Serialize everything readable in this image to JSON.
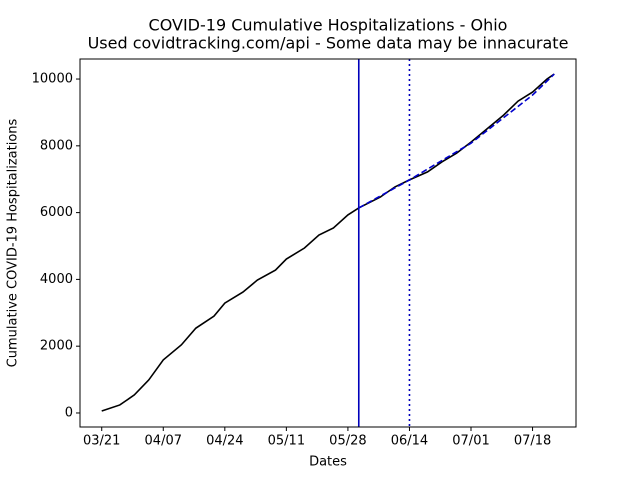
{
  "chart_data": {
    "type": "line",
    "title": "COVID-19 Cumulative Hospitalizations - Ohio",
    "subtitle": "Used covidtracking.com/api - Some data may be innacurate",
    "x_label": "Dates",
    "y_label": "Cumulative COVID-19 Hospitalizations",
    "xlim": [
      "03/15",
      "07/30"
    ],
    "xticks": [
      "03/21",
      "04/07",
      "04/24",
      "05/11",
      "05/28",
      "06/14",
      "07/01",
      "07/18"
    ],
    "ylim": [
      -420,
      10600
    ],
    "yticks": [
      0,
      2000,
      4000,
      6000,
      8000,
      10000
    ],
    "series": [
      {
        "color": "#000000",
        "style": "solid",
        "x": [
          "03/21",
          "03/26",
          "03/30",
          "04/03",
          "04/07",
          "04/12",
          "04/16",
          "04/21",
          "04/24",
          "04/29",
          "05/03",
          "05/08",
          "05/11",
          "05/16",
          "05/20",
          "05/24",
          "05/28",
          "05/31",
          "06/06",
          "06/10",
          "06/14",
          "06/19",
          "06/23",
          "06/27",
          "07/01",
          "07/06",
          "07/10",
          "07/14",
          "07/18",
          "07/22",
          "07/24"
        ],
        "values": [
          60,
          240,
          540,
          990,
          1590,
          2040,
          2540,
          2900,
          3290,
          3620,
          3980,
          4280,
          4610,
          4940,
          5330,
          5540,
          5930,
          6140,
          6470,
          6770,
          6980,
          7220,
          7520,
          7780,
          8110,
          8560,
          8920,
          9340,
          9610,
          10000,
          10150
        ]
      },
      {
        "color": "#0000cc",
        "style": "dashed",
        "x": [
          "05/31",
          "06/14",
          "07/01",
          "07/18",
          "07/24"
        ],
        "values": [
          6140,
          6980,
          8080,
          9520,
          10150
        ]
      }
    ],
    "vlines": [
      {
        "x": "05/31",
        "style": "solid",
        "color": "#0000bb"
      },
      {
        "x": "06/14",
        "style": "dotted",
        "color": "#0000bb"
      }
    ]
  }
}
